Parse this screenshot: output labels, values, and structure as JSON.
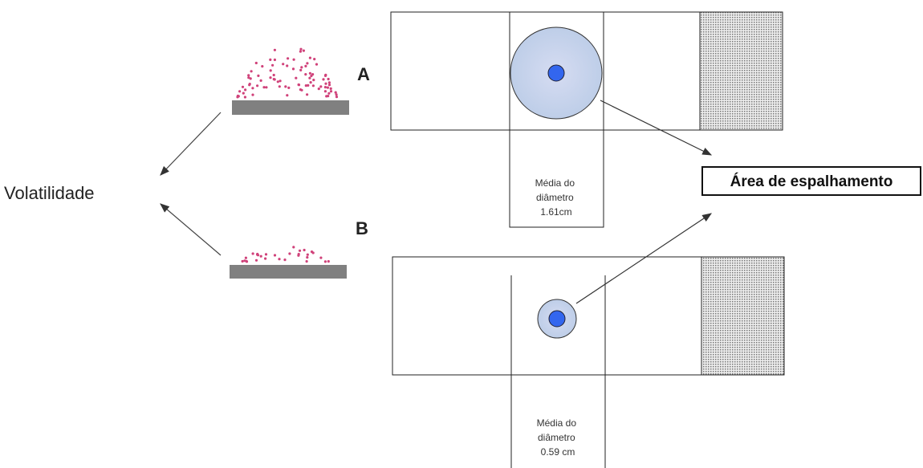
{
  "left": {
    "label": "Volatilidade",
    "marker_a": "A",
    "marker_b": "B"
  },
  "slides": [
    {
      "caption": [
        "Média do",
        "diâmetro",
        "1.61cm"
      ]
    },
    {
      "caption": [
        "Média do",
        "diâmetro",
        "0.59 cm"
      ]
    }
  ],
  "callout": "Área de espalhamento"
}
